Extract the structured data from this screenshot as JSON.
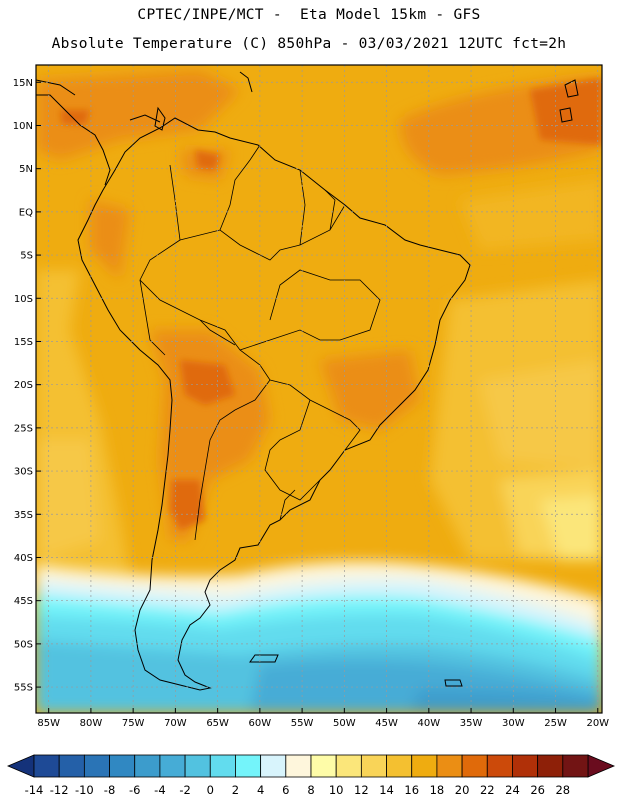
{
  "header": {
    "title_line1": "CPTEC/INPE/MCT -  Eta Model 15km - GFS",
    "title_line2": "Absolute Temperature (C) 850hPa - 03/03/2021 12UTC fct=2h"
  },
  "map": {
    "lat_labels": [
      "15N",
      "10N",
      "5N",
      "EQ",
      "5S",
      "10S",
      "15S",
      "20S",
      "25S",
      "30S",
      "35S",
      "40S",
      "45S",
      "50S",
      "55S"
    ],
    "lon_labels": [
      "85W",
      "80W",
      "75W",
      "70W",
      "65W",
      "60W",
      "55W",
      "50W",
      "45W",
      "40W",
      "35W",
      "30W",
      "25W",
      "20W"
    ],
    "lat_range": [
      17,
      -58
    ],
    "lon_range": [
      -86.5,
      -19.5
    ]
  },
  "colorbar": {
    "labels": [
      "-14",
      "-12",
      "-10",
      "-8",
      "-6",
      "-4",
      "-2",
      "0",
      "2",
      "4",
      "6",
      "8",
      "10",
      "12",
      "14",
      "16",
      "18",
      "20",
      "22",
      "24",
      "26",
      "28"
    ],
    "colors": [
      "#1e4a96",
      "#2460a8",
      "#2a74b6",
      "#3088c2",
      "#3c9ccc",
      "#46acd6",
      "#52c2e0",
      "#62dcee",
      "#74f4fa",
      "#d8f4fc",
      "#fef6dc",
      "#fefca8",
      "#fbe67a",
      "#f9d458",
      "#f4c030",
      "#efac10",
      "#eb8e14",
      "#e06a0a",
      "#cc4a0a",
      "#b03008",
      "#8e2008",
      "#721414"
    ]
  }
}
